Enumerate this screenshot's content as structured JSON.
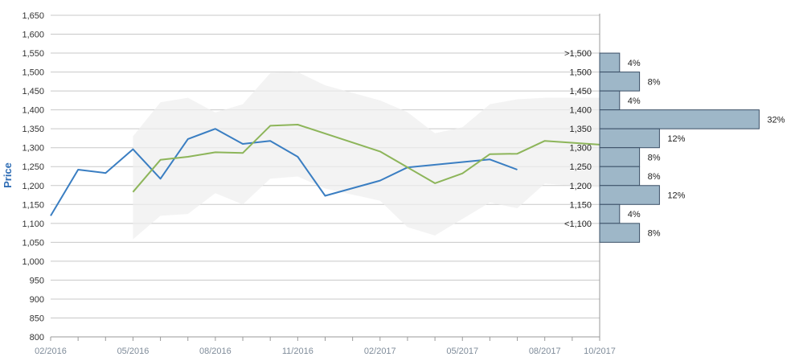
{
  "chart_data": {
    "type": "line",
    "title": "",
    "ylabel": "Price",
    "ylim": [
      800,
      1650
    ],
    "y_ticks": [
      "1,650",
      "1,600",
      "1,550",
      "1,500",
      "1,450",
      "1,400",
      "1,350",
      "1,300",
      "1,250",
      "1,200",
      "1,150",
      "1,100",
      "1,050",
      "1,000",
      "950",
      "900",
      "850",
      "800"
    ],
    "x_tick_labels": [
      "02/2016",
      "05/2016",
      "08/2016",
      "11/2016",
      "02/2017",
      "05/2017",
      "08/2017",
      "10/2017"
    ],
    "grid": true,
    "colors": {
      "series_blue": "#3a7ec2",
      "series_green": "#8db55a",
      "band": "#eeeeee",
      "hist_fill": "#9eb7c8",
      "hist_stroke": "#3a4f66",
      "grid": "#c8c8c8",
      "tick_x_label": "#7f8c9a",
      "ylabel": "#2f6db5"
    },
    "series": [
      {
        "x": [
          "2016-02",
          "2016-03",
          "2016-04",
          "2016-05",
          "2016-06",
          "2016-07",
          "2016-08",
          "2016-09",
          "2016-10",
          "2016-11",
          "2016-12",
          "2017-02",
          "2017-03",
          "2017-06",
          "2017-07"
        ],
        "values": [
          1120,
          1242,
          1233,
          1296,
          1218,
          1323,
          1350,
          1310,
          1318,
          1276,
          1173,
          1213,
          1248,
          1269,
          1242
        ]
      },
      {
        "x": [
          "2016-05",
          "2016-06",
          "2016-07",
          "2016-08",
          "2016-09",
          "2016-10",
          "2016-11",
          "2017-02",
          "2017-04",
          "2017-05",
          "2017-06",
          "2017-07",
          "2017-08",
          "2017-10"
        ],
        "values": [
          1183,
          1268,
          1276,
          1288,
          1286,
          1358,
          1361,
          1290,
          1206,
          1232,
          1283,
          1284,
          1318,
          1308
        ]
      }
    ],
    "band": {
      "x": [
        "2016-05",
        "2016-06",
        "2016-07",
        "2016-08",
        "2016-09",
        "2016-10",
        "2016-11",
        "2016-12",
        "2017-02",
        "2017-03",
        "2017-04",
        "2017-05",
        "2017-06",
        "2017-07",
        "2017-08",
        "2017-10"
      ],
      "upper": [
        1330,
        1420,
        1432,
        1393,
        1415,
        1497,
        1500,
        1465,
        1425,
        1394,
        1338,
        1354,
        1415,
        1428,
        1432,
        1432
      ],
      "lower": [
        1058,
        1120,
        1125,
        1180,
        1150,
        1218,
        1224,
        1192,
        1160,
        1090,
        1068,
        1112,
        1155,
        1140,
        1205,
        1195
      ]
    },
    "histogram": {
      "bins": [
        {
          "label": ">1,500",
          "percent": 4
        },
        {
          "label": "1,500",
          "percent": 8
        },
        {
          "label": "1,450",
          "percent": 4
        },
        {
          "label": "1,400",
          "percent": 32
        },
        {
          "label": "1,350",
          "percent": 12
        },
        {
          "label": "1,300",
          "percent": 8
        },
        {
          "label": "1,250",
          "percent": 8
        },
        {
          "label": "1,200",
          "percent": 12
        },
        {
          "label": "1,150",
          "percent": 4
        },
        {
          "label": "<1,100",
          "percent": 8
        }
      ],
      "pct_labels": [
        "4%",
        "8%",
        "4%",
        "32%",
        "12%",
        "8%",
        "8%",
        "12%",
        "4%",
        "8%"
      ]
    }
  }
}
